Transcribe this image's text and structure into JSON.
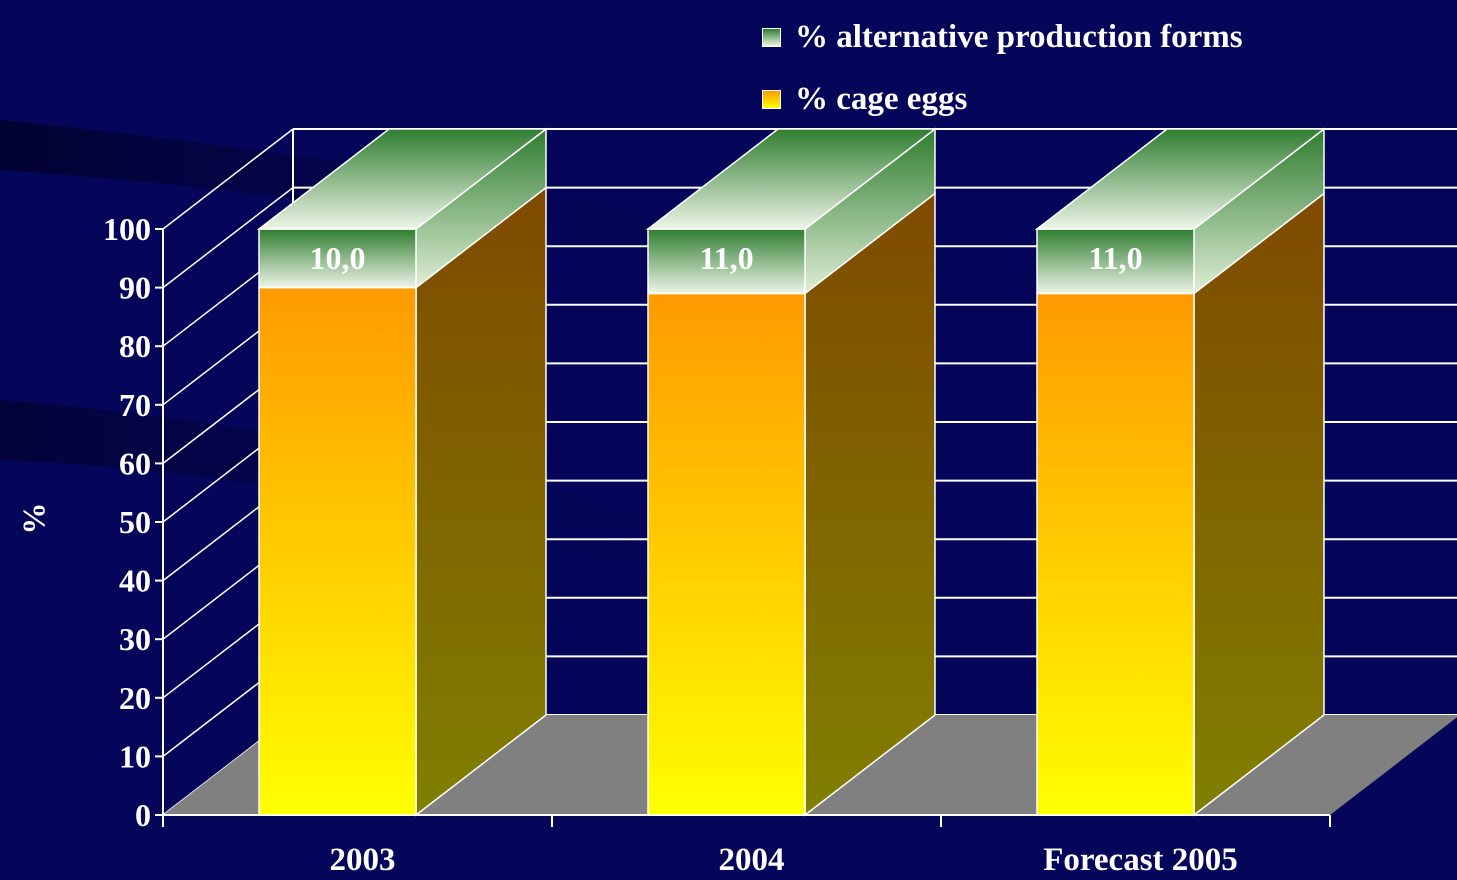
{
  "chart_data": {
    "type": "bar",
    "stacked": true,
    "three_d": true,
    "categories": [
      "2003",
      "2004",
      "Forecast 2005"
    ],
    "series": [
      {
        "name": "% cage eggs",
        "values": [
          90.0,
          89.0,
          89.0
        ]
      },
      {
        "name": "% alternative production forms",
        "values": [
          10.0,
          11.0,
          11.0
        ]
      }
    ],
    "data_labels": [
      "10,0",
      "11,0",
      "11,0"
    ],
    "ylabel": "%",
    "ylim": [
      0,
      100
    ],
    "yticks": [
      "0",
      "10",
      "20",
      "30",
      "40",
      "50",
      "60",
      "70",
      "80",
      "90",
      "100"
    ],
    "grid": true,
    "legend_position": "top-right",
    "colors": {
      "background": "#05055a",
      "cage_top": "#ff9a00",
      "cage_bottom": "#ffff00",
      "cage_side": "#7a5a00",
      "alt_top": "#2f7d2f",
      "alt_bottom": "#eef5e8",
      "floor": "#808080",
      "text": "#ffffff"
    }
  }
}
